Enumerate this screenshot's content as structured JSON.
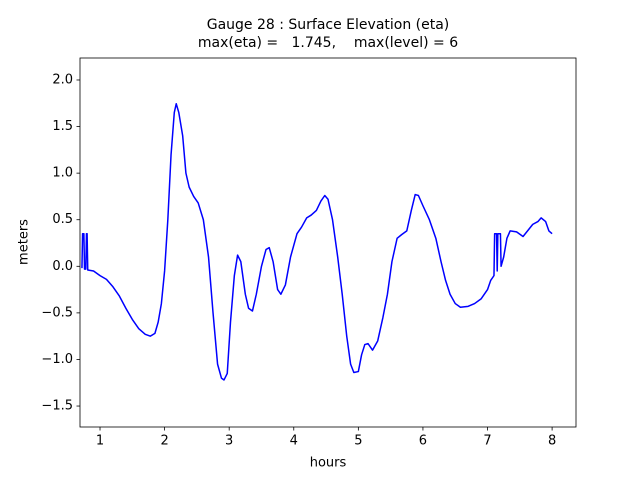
{
  "chart_data": {
    "type": "line",
    "title": "Gauge 28 : Surface Elevation (eta)",
    "subtitle": "max(eta) =   1.745,    max(level) = 6",
    "xlabel": "hours",
    "ylabel": "meters",
    "xlim": [
      0.69,
      8.37
    ],
    "ylim": [
      -1.725,
      2.236
    ],
    "xticks": [
      1,
      2,
      3,
      4,
      5,
      6,
      7,
      8
    ],
    "yticks": [
      {
        "value": -1.5,
        "label": "−1.5"
      },
      {
        "value": -1.0,
        "label": "−1.0"
      },
      {
        "value": -0.5,
        "label": "−0.5"
      },
      {
        "value": 0,
        "label": "0.0"
      },
      0.5,
      {
        "value": 1,
        "label": "1.0"
      },
      1.5,
      {
        "value": 2,
        "label": "2.0"
      }
    ],
    "grid": false,
    "x": [
      0.72,
      0.73,
      0.75,
      0.76,
      0.78,
      0.79,
      0.8,
      0.81,
      0.9,
      1.0,
      1.1,
      1.2,
      1.3,
      1.4,
      1.5,
      1.6,
      1.7,
      1.78,
      1.85,
      1.9,
      1.95,
      2.0,
      2.05,
      2.1,
      2.15,
      2.18,
      2.22,
      2.28,
      2.33,
      2.38,
      2.45,
      2.52,
      2.6,
      2.68,
      2.75,
      2.82,
      2.88,
      2.92,
      2.97,
      3.02,
      3.08,
      3.13,
      3.18,
      3.25,
      3.3,
      3.36,
      3.42,
      3.5,
      3.57,
      3.62,
      3.68,
      3.75,
      3.8,
      3.87,
      3.95,
      4.05,
      4.12,
      4.2,
      4.27,
      4.35,
      4.42,
      4.48,
      4.53,
      4.6,
      4.68,
      4.75,
      4.82,
      4.88,
      4.93,
      5.0,
      5.05,
      5.1,
      5.15,
      5.22,
      5.3,
      5.38,
      5.45,
      5.52,
      5.6,
      5.67,
      5.75,
      5.82,
      5.88,
      5.93,
      6.0,
      6.1,
      6.2,
      6.28,
      6.35,
      6.42,
      6.5,
      6.58,
      6.7,
      6.8,
      6.9,
      7.0,
      7.05,
      7.1,
      7.11,
      7.14,
      7.15,
      7.16,
      7.2,
      7.21,
      7.25,
      7.3,
      7.35,
      7.45,
      7.55,
      7.62,
      7.7,
      7.78,
      7.83,
      7.9,
      7.95,
      8.0
    ],
    "series": [
      {
        "color": "#0000ff",
        "values": [
          -0.02,
          0.35,
          0.35,
          -0.03,
          -0.03,
          0.35,
          0.35,
          -0.04,
          -0.05,
          -0.1,
          -0.14,
          -0.22,
          -0.32,
          -0.45,
          -0.57,
          -0.67,
          -0.73,
          -0.75,
          -0.72,
          -0.6,
          -0.4,
          -0.05,
          0.5,
          1.2,
          1.65,
          1.745,
          1.65,
          1.4,
          1.0,
          0.85,
          0.75,
          0.68,
          0.5,
          0.1,
          -0.5,
          -1.05,
          -1.2,
          -1.22,
          -1.15,
          -0.6,
          -0.1,
          0.12,
          0.05,
          -0.3,
          -0.45,
          -0.48,
          -0.3,
          0.0,
          0.18,
          0.2,
          0.05,
          -0.25,
          -0.3,
          -0.2,
          0.1,
          0.35,
          0.42,
          0.52,
          0.55,
          0.6,
          0.7,
          0.76,
          0.72,
          0.5,
          0.1,
          -0.3,
          -0.75,
          -1.05,
          -1.14,
          -1.13,
          -0.95,
          -0.84,
          -0.83,
          -0.9,
          -0.8,
          -0.55,
          -0.3,
          0.05,
          0.3,
          0.34,
          0.38,
          0.6,
          0.77,
          0.76,
          0.65,
          0.5,
          0.3,
          0.05,
          -0.15,
          -0.3,
          -0.4,
          -0.44,
          -0.43,
          -0.4,
          -0.35,
          -0.25,
          -0.15,
          -0.1,
          0.35,
          0.35,
          -0.05,
          0.35,
          0.35,
          0.0,
          0.1,
          0.3,
          0.38,
          0.37,
          0.32,
          0.38,
          0.45,
          0.48,
          0.52,
          0.48,
          0.38,
          0.35
        ]
      }
    ]
  }
}
